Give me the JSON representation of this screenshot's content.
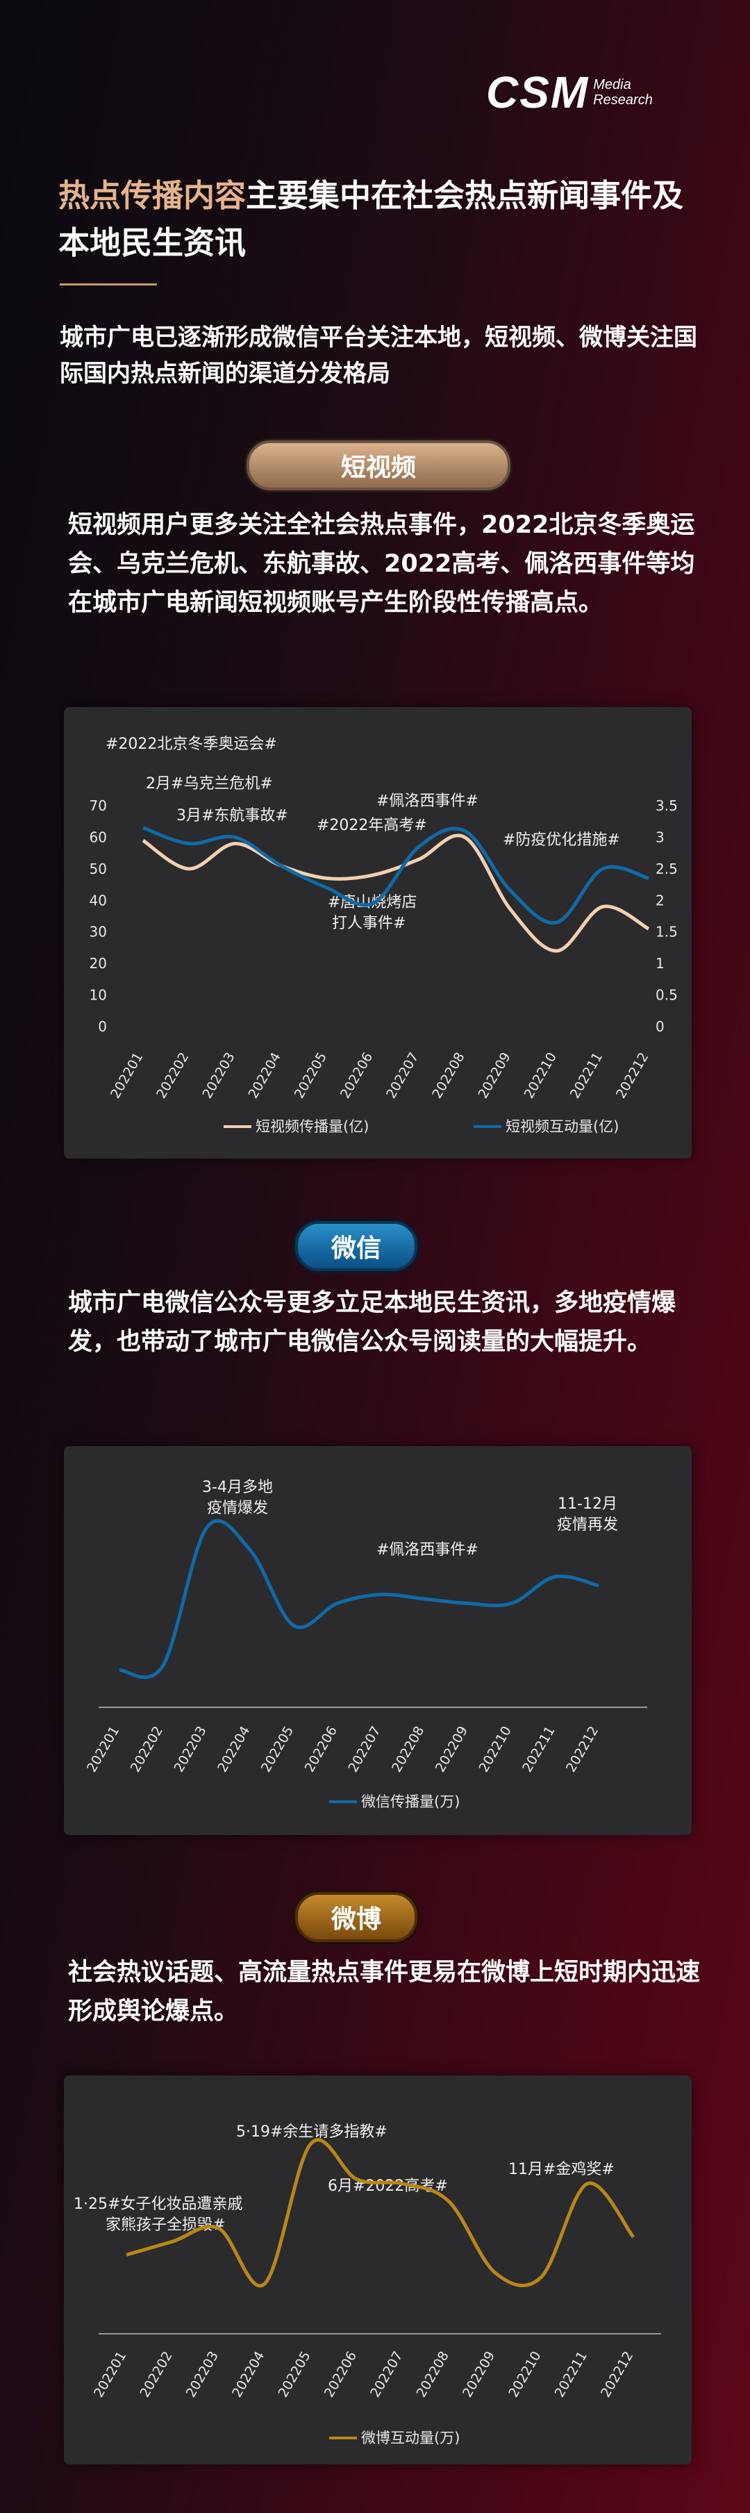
{
  "brand": {
    "logo_text": "CSM",
    "logo_sub1": "Media",
    "logo_sub2": "Research"
  },
  "headline": {
    "part1": "热点传播内容",
    "part2": "主要集中在社会热点新闻事件及本地民生资讯"
  },
  "subhead": "城市广电已逐渐形成微信平台关注本地，短视频、微博关注国际国内热点新闻的渠道分发格局",
  "sections": {
    "short_video": {
      "pill": "短视频",
      "body": "短视频用户更多关注全社会热点事件，2022北京冬季奥运会、乌克兰危机、东航事故、2022高考、佩洛西事件等均在城市广电新闻短视频账号产生阶段性传播高点。"
    },
    "wechat": {
      "pill": "微信",
      "body": "城市广电微信公众号更多立足本地民生资讯，多地疫情爆发，也带动了城市广电微信公众号阅读量的大幅提升。"
    },
    "weibo": {
      "pill": "微博",
      "body": "社会热议话题、高流量热点事件更易在微博上短时期内迅速形成舆论爆点。"
    }
  },
  "colors": {
    "accent": "#e3b48c",
    "line_reach": "#f2cfae",
    "line_blue": "#0f6aa8",
    "line_gold": "#b88716"
  },
  "chart_data": [
    {
      "type": "line",
      "categories": [
        "202201",
        "202202",
        "202203",
        "202204",
        "202205",
        "202206",
        "202207",
        "202208",
        "202209",
        "202210",
        "202211",
        "202212"
      ],
      "series": [
        {
          "name": "短视频传播量(亿)",
          "axis": "left",
          "values": [
            59,
            50,
            58,
            51,
            47,
            48,
            53,
            60,
            37,
            24,
            38,
            31
          ]
        },
        {
          "name": "短视频互动量(亿)",
          "axis": "right",
          "values": [
            3.15,
            2.9,
            3.0,
            2.55,
            2.2,
            1.95,
            2.85,
            3.1,
            2.15,
            1.65,
            2.5,
            2.35
          ]
        }
      ],
      "ylim_left": [
        0,
        70
      ],
      "yticks_left": [
        0,
        10,
        20,
        30,
        40,
        50,
        60,
        70
      ],
      "ylim_right": [
        0,
        3.5
      ],
      "yticks_right": [
        "0",
        "0.5",
        "1",
        "1.5",
        "2",
        "2.5",
        "3",
        "3.5"
      ],
      "annotations": [
        "#2022北京冬季奥运会#",
        "2月#乌克兰危机#",
        "3月#东航事故#",
        "#佩洛西事件#",
        "#2022年高考#",
        "#防疫优化措施#",
        "#唐山烧烤店",
        "打人事件#"
      ],
      "legend": "bottom",
      "grid": false
    },
    {
      "type": "line",
      "categories": [
        "202201",
        "202202",
        "202203",
        "202204",
        "202205",
        "202206",
        "202207",
        "202208",
        "202209",
        "202210",
        "202211",
        "202212"
      ],
      "series": [
        {
          "name": "微信传播量(万)",
          "values": [
            18,
            20,
            82,
            72,
            38,
            48,
            52,
            50,
            48,
            48,
            60,
            56
          ]
        }
      ],
      "ylim": [
        0,
        100
      ],
      "annotations": [
        "3-4月多地",
        "疫情爆发",
        "#佩洛西事件#",
        "11-12月",
        "疫情再发"
      ],
      "legend": "bottom",
      "grid": false
    },
    {
      "type": "line",
      "categories": [
        "202201",
        "202202",
        "202203",
        "202204",
        "202205",
        "202206",
        "202207",
        "202208",
        "202209",
        "202210",
        "202211",
        "202212"
      ],
      "series": [
        {
          "name": "微博互动量(万)",
          "values": [
            38,
            44,
            50,
            25,
            88,
            72,
            70,
            62,
            30,
            28,
            70,
            46
          ]
        }
      ],
      "ylim": [
        0,
        100
      ],
      "annotations": [
        "5·19#余生请多指教#",
        "1·25#女子化妆品遭亲戚",
        "家熊孩子全损毁#",
        "6月#2022高考#",
        "11月#金鸡奖#"
      ],
      "legend": "bottom",
      "grid": false
    }
  ]
}
